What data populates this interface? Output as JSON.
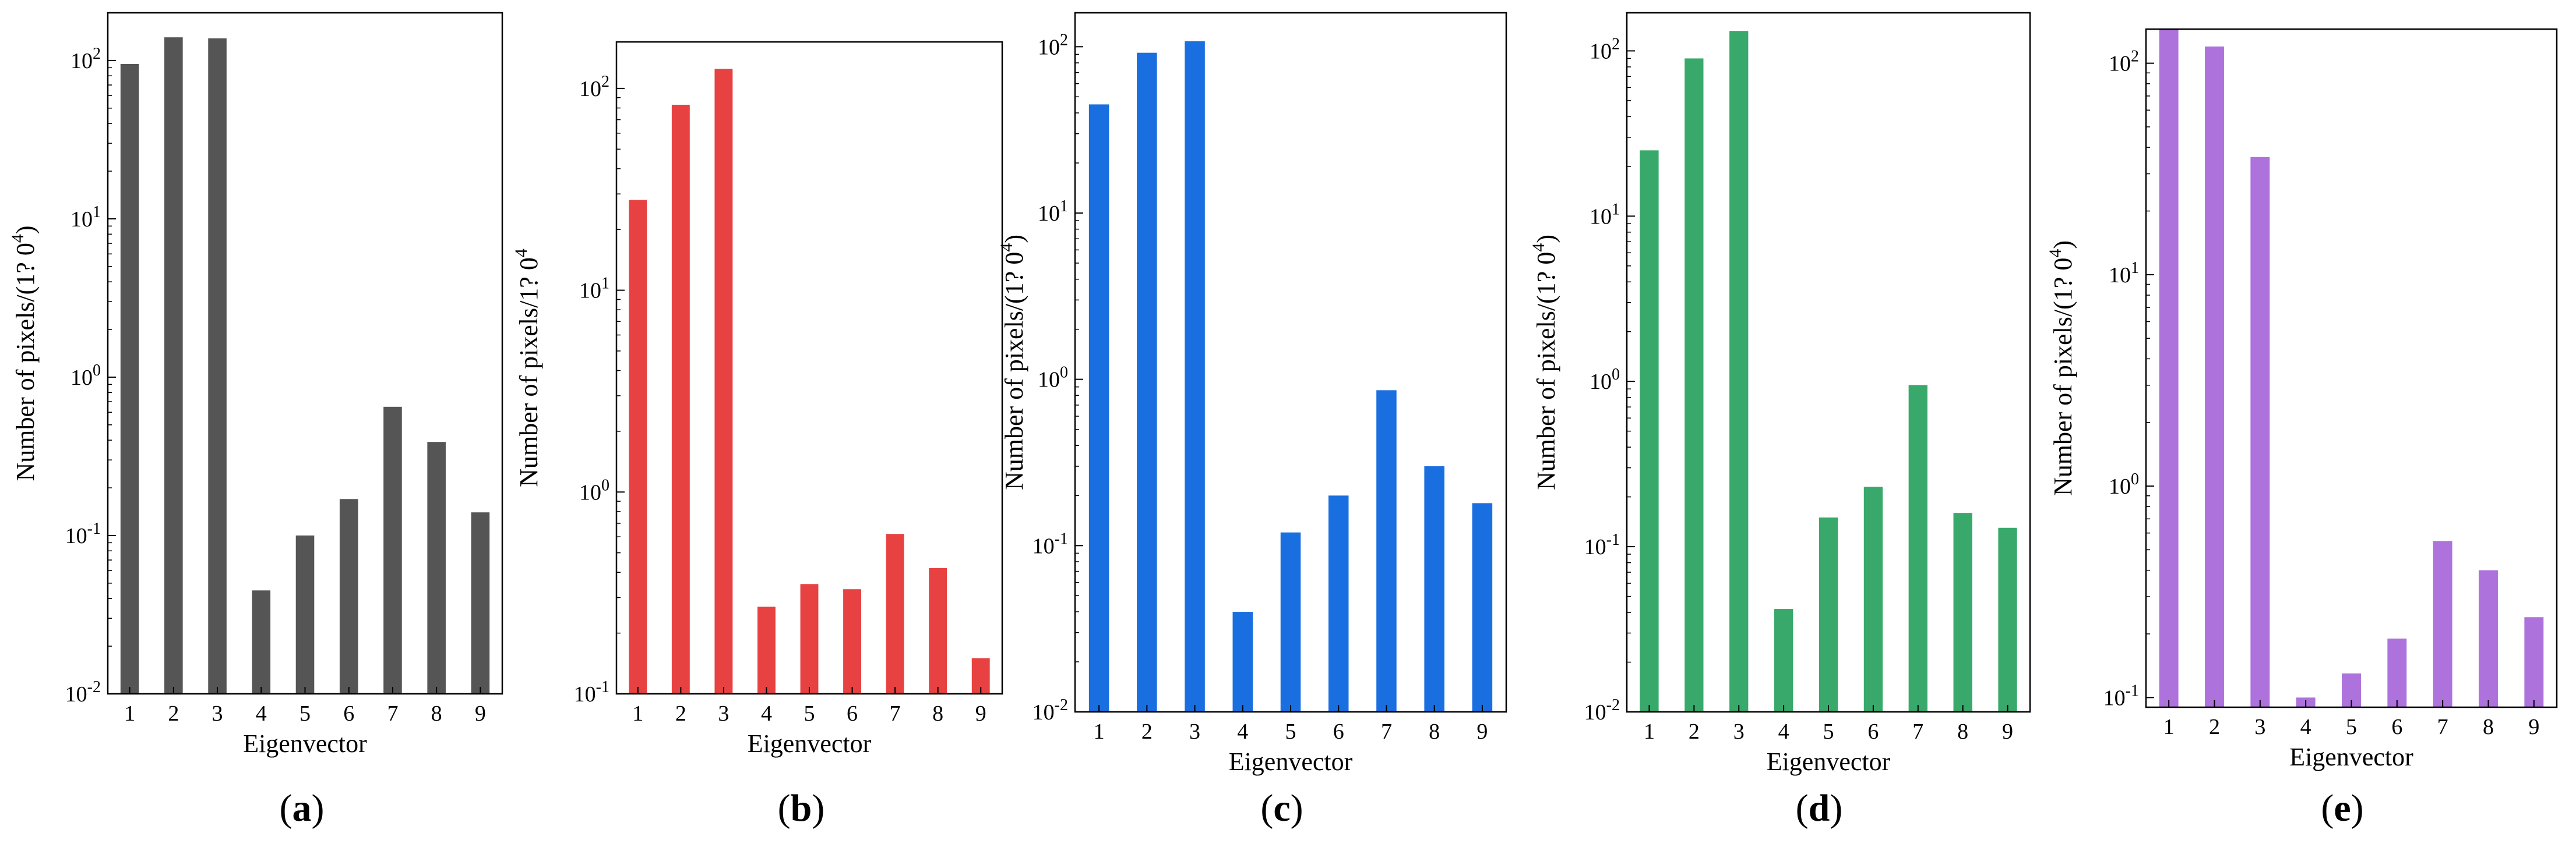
{
  "chart_data": [
    {
      "type": "bar",
      "panel_label": "a",
      "color": "#555555",
      "scale": "log",
      "categories": [
        "1",
        "2",
        "3",
        "4",
        "5",
        "6",
        "7",
        "8",
        "9"
      ],
      "values": [
        95,
        140,
        138,
        0.045,
        0.1,
        0.17,
        0.65,
        0.39,
        0.14
      ],
      "ylim": [
        0.01,
        200
      ],
      "yticks": [
        {
          "value": 0.01,
          "base": "10",
          "exp": "-2"
        },
        {
          "value": 0.1,
          "base": "10",
          "exp": "-1"
        },
        {
          "value": 1,
          "base": "10",
          "exp": "0"
        },
        {
          "value": 10,
          "base": "10",
          "exp": "1"
        },
        {
          "value": 100,
          "base": "10",
          "exp": "2"
        }
      ],
      "xlabel": "Eigenvector",
      "ylabel_text": "Number of pixels/(1?  0",
      "ylabel_sup": "4",
      "ylabel_tail": ")"
    },
    {
      "type": "bar",
      "panel_label": "b",
      "color": "#e84141",
      "scale": "log",
      "categories": [
        "1",
        "2",
        "3",
        "4",
        "5",
        "6",
        "7",
        "8",
        "9"
      ],
      "values": [
        28,
        83,
        125,
        0.27,
        0.35,
        0.33,
        0.62,
        0.42,
        0.15
      ],
      "ylim": [
        0.1,
        170
      ],
      "yticks": [
        {
          "value": 0.1,
          "base": "10",
          "exp": "-1"
        },
        {
          "value": 1,
          "base": "10",
          "exp": "0"
        },
        {
          "value": 10,
          "base": "10",
          "exp": "1"
        },
        {
          "value": 100,
          "base": "10",
          "exp": "2"
        }
      ],
      "xlabel": "Eigenvector",
      "ylabel_text": "Number of pixels/1?  0",
      "ylabel_sup": "4",
      "ylabel_tail": ""
    },
    {
      "type": "bar",
      "panel_label": "c",
      "color": "#1a6fe0",
      "scale": "log",
      "categories": [
        "1",
        "2",
        "3",
        "4",
        "5",
        "6",
        "7",
        "8",
        "9"
      ],
      "values": [
        45,
        92,
        108,
        0.04,
        0.12,
        0.2,
        0.86,
        0.3,
        0.18
      ],
      "ylim": [
        0.01,
        160
      ],
      "yticks": [
        {
          "value": 0.01,
          "base": "10",
          "exp": "-2"
        },
        {
          "value": 0.1,
          "base": "10",
          "exp": "-1"
        },
        {
          "value": 1,
          "base": "10",
          "exp": "0"
        },
        {
          "value": 10,
          "base": "10",
          "exp": "1"
        },
        {
          "value": 100,
          "base": "10",
          "exp": "2"
        }
      ],
      "xlabel": "Eigenvector",
      "ylabel_text": "Number of pixels/(1?  0",
      "ylabel_sup": "4",
      "ylabel_tail": ")"
    },
    {
      "type": "bar",
      "panel_label": "d",
      "color": "#38a96a",
      "scale": "log",
      "categories": [
        "1",
        "2",
        "3",
        "4",
        "5",
        "6",
        "7",
        "8",
        "9"
      ],
      "values": [
        25,
        90,
        132,
        0.042,
        0.15,
        0.23,
        0.95,
        0.16,
        0.13
      ],
      "ylim": [
        0.01,
        170
      ],
      "yticks": [
        {
          "value": 0.01,
          "base": "10",
          "exp": "-2"
        },
        {
          "value": 0.1,
          "base": "10",
          "exp": "-1"
        },
        {
          "value": 1,
          "base": "10",
          "exp": "0"
        },
        {
          "value": 10,
          "base": "10",
          "exp": "1"
        },
        {
          "value": 100,
          "base": "10",
          "exp": "2"
        }
      ],
      "xlabel": "Eigenvector",
      "ylabel_text": "Number of pixels/(1?  0",
      "ylabel_sup": "4",
      "ylabel_tail": ")"
    },
    {
      "type": "bar",
      "panel_label": "e",
      "color": "#ad72dc",
      "scale": "log",
      "categories": [
        "1",
        "2",
        "3",
        "4",
        "5",
        "6",
        "7",
        "8",
        "9"
      ],
      "values": [
        145,
        120,
        36,
        0.1,
        0.13,
        0.19,
        0.55,
        0.4,
        0.24
      ],
      "ylim": [
        0.09,
        145
      ],
      "yticks": [
        {
          "value": 0.1,
          "base": "10",
          "exp": "-1"
        },
        {
          "value": 1,
          "base": "10",
          "exp": "0"
        },
        {
          "value": 10,
          "base": "10",
          "exp": "1"
        },
        {
          "value": 100,
          "base": "10",
          "exp": "2"
        }
      ],
      "xlabel": "Eigenvector",
      "ylabel_text": "Number of pixels/(1?  0",
      "ylabel_sup": "4",
      "ylabel_tail": ")"
    }
  ]
}
